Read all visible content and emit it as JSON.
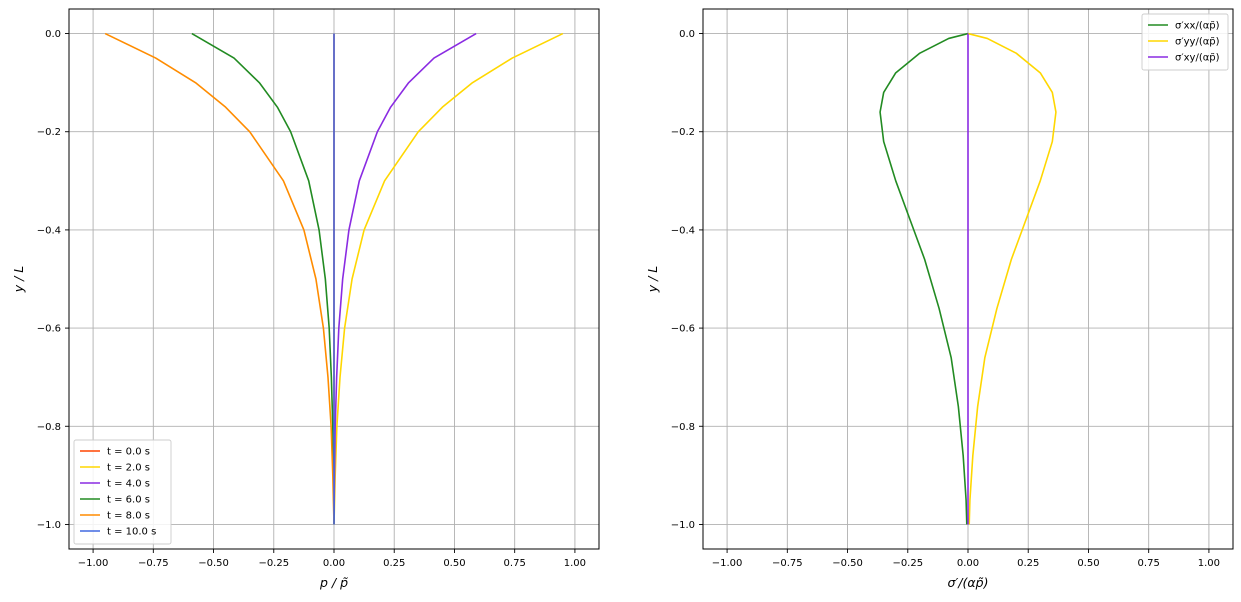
{
  "chart_data": [
    {
      "type": "line",
      "xlabel": "p / p̃",
      "ylabel": "y / L",
      "xlim": [
        -1.1,
        1.1
      ],
      "ylim": [
        -1.05,
        0.05
      ],
      "xticks": [
        -1.0,
        -0.75,
        -0.5,
        -0.25,
        0.0,
        0.25,
        0.5,
        0.75,
        1.0
      ],
      "xtick_labels": [
        "−1.00",
        "−0.75",
        "−0.50",
        "−0.25",
        "0.00",
        "0.25",
        "0.50",
        "0.75",
        "1.00"
      ],
      "yticks": [
        0.0,
        -0.2,
        -0.4,
        -0.6,
        -0.8,
        -1.0
      ],
      "ytick_labels": [
        "0.0",
        "−0.2",
        "−0.4",
        "−0.6",
        "−0.8",
        "−1.0"
      ],
      "grid": true,
      "legend_position": "lower-left",
      "series": [
        {
          "name": "t = 0.0 s",
          "color": "#ff4500",
          "points": [
            [
              0,
              0
            ],
            [
              0,
              -1.0
            ]
          ]
        },
        {
          "name": "t = 2.0 s",
          "color": "#ffd700",
          "points": [
            [
              0.95,
              0
            ],
            [
              0.74,
              -0.05
            ],
            [
              0.575,
              -0.1
            ],
            [
              0.45,
              -0.15
            ],
            [
              0.35,
              -0.2
            ],
            [
              0.21,
              -0.3
            ],
            [
              0.125,
              -0.4
            ],
            [
              0.075,
              -0.5
            ],
            [
              0.044,
              -0.6
            ],
            [
              0.025,
              -0.7
            ],
            [
              0.012,
              -0.8
            ],
            [
              0.005,
              -0.9
            ],
            [
              0.0,
              -1.0
            ]
          ]
        },
        {
          "name": "t = 4.0 s",
          "color": "#8a2be2",
          "points": [
            [
              0.59,
              0
            ],
            [
              0.415,
              -0.05
            ],
            [
              0.31,
              -0.1
            ],
            [
              0.235,
              -0.15
            ],
            [
              0.18,
              -0.2
            ],
            [
              0.105,
              -0.3
            ],
            [
              0.062,
              -0.4
            ],
            [
              0.036,
              -0.5
            ],
            [
              0.02,
              -0.6
            ],
            [
              0.011,
              -0.7
            ],
            [
              0.005,
              -0.8
            ],
            [
              0.002,
              -0.9
            ],
            [
              0.0,
              -1.0
            ]
          ]
        },
        {
          "name": "t = 6.0 s",
          "color": "#228b22",
          "points": [
            [
              -0.59,
              0
            ],
            [
              -0.415,
              -0.05
            ],
            [
              -0.31,
              -0.1
            ],
            [
              -0.235,
              -0.15
            ],
            [
              -0.18,
              -0.2
            ],
            [
              -0.105,
              -0.3
            ],
            [
              -0.062,
              -0.4
            ],
            [
              -0.036,
              -0.5
            ],
            [
              -0.02,
              -0.6
            ],
            [
              -0.011,
              -0.7
            ],
            [
              -0.005,
              -0.8
            ],
            [
              -0.002,
              -0.9
            ],
            [
              0.0,
              -1.0
            ]
          ]
        },
        {
          "name": "t = 8.0 s",
          "color": "#ff8c00",
          "points": [
            [
              -0.95,
              0
            ],
            [
              -0.74,
              -0.05
            ],
            [
              -0.575,
              -0.1
            ],
            [
              -0.45,
              -0.15
            ],
            [
              -0.35,
              -0.2
            ],
            [
              -0.21,
              -0.3
            ],
            [
              -0.125,
              -0.4
            ],
            [
              -0.075,
              -0.5
            ],
            [
              -0.044,
              -0.6
            ],
            [
              -0.025,
              -0.7
            ],
            [
              -0.012,
              -0.8
            ],
            [
              -0.005,
              -0.9
            ],
            [
              0.0,
              -1.0
            ]
          ]
        },
        {
          "name": "t = 10.0 s",
          "color": "#4169e1",
          "points": [
            [
              0,
              0
            ],
            [
              0,
              -1.0
            ]
          ]
        }
      ]
    },
    {
      "type": "line",
      "xlabel": "σ′/(αp̃)",
      "ylabel": "y / L",
      "xlim": [
        -1.1,
        1.1
      ],
      "ylim": [
        -1.05,
        0.05
      ],
      "xticks": [
        -1.0,
        -0.75,
        -0.5,
        -0.25,
        0.0,
        0.25,
        0.5,
        0.75,
        1.0
      ],
      "xtick_labels": [
        "−1.00",
        "−0.75",
        "−0.50",
        "−0.25",
        "0.00",
        "0.25",
        "0.50",
        "0.75",
        "1.00"
      ],
      "yticks": [
        0.0,
        -0.2,
        -0.4,
        -0.6,
        -0.8,
        -1.0
      ],
      "ytick_labels": [
        "0.0",
        "−0.2",
        "−0.4",
        "−0.6",
        "−0.8",
        "−1.0"
      ],
      "grid": true,
      "legend_position": "top-right",
      "series": [
        {
          "name": "σ′xx/(αp̃)",
          "color": "#228b22",
          "points": [
            [
              0,
              0
            ],
            [
              -0.08,
              -0.01
            ],
            [
              -0.2,
              -0.04
            ],
            [
              -0.3,
              -0.08
            ],
            [
              -0.35,
              -0.12
            ],
            [
              -0.365,
              -0.16
            ],
            [
              -0.35,
              -0.22
            ],
            [
              -0.3,
              -0.3
            ],
            [
              -0.24,
              -0.38
            ],
            [
              -0.18,
              -0.46
            ],
            [
              -0.12,
              -0.56
            ],
            [
              -0.07,
              -0.66
            ],
            [
              -0.04,
              -0.76
            ],
            [
              -0.02,
              -0.86
            ],
            [
              -0.008,
              -0.95
            ],
            [
              -0.005,
              -1.0
            ]
          ]
        },
        {
          "name": "σ′yy/(αp̃)",
          "color": "#ffd700",
          "points": [
            [
              0,
              0
            ],
            [
              0.08,
              -0.01
            ],
            [
              0.2,
              -0.04
            ],
            [
              0.3,
              -0.08
            ],
            [
              0.35,
              -0.12
            ],
            [
              0.365,
              -0.16
            ],
            [
              0.35,
              -0.22
            ],
            [
              0.3,
              -0.3
            ],
            [
              0.24,
              -0.38
            ],
            [
              0.18,
              -0.46
            ],
            [
              0.12,
              -0.56
            ],
            [
              0.07,
              -0.66
            ],
            [
              0.04,
              -0.76
            ],
            [
              0.02,
              -0.86
            ],
            [
              0.008,
              -0.95
            ],
            [
              0.005,
              -1.0
            ]
          ]
        },
        {
          "name": "σ′xy/(αp̃)",
          "color": "#8a2be2",
          "points": [
            [
              0,
              0
            ],
            [
              0,
              -1.0
            ]
          ]
        }
      ]
    }
  ]
}
